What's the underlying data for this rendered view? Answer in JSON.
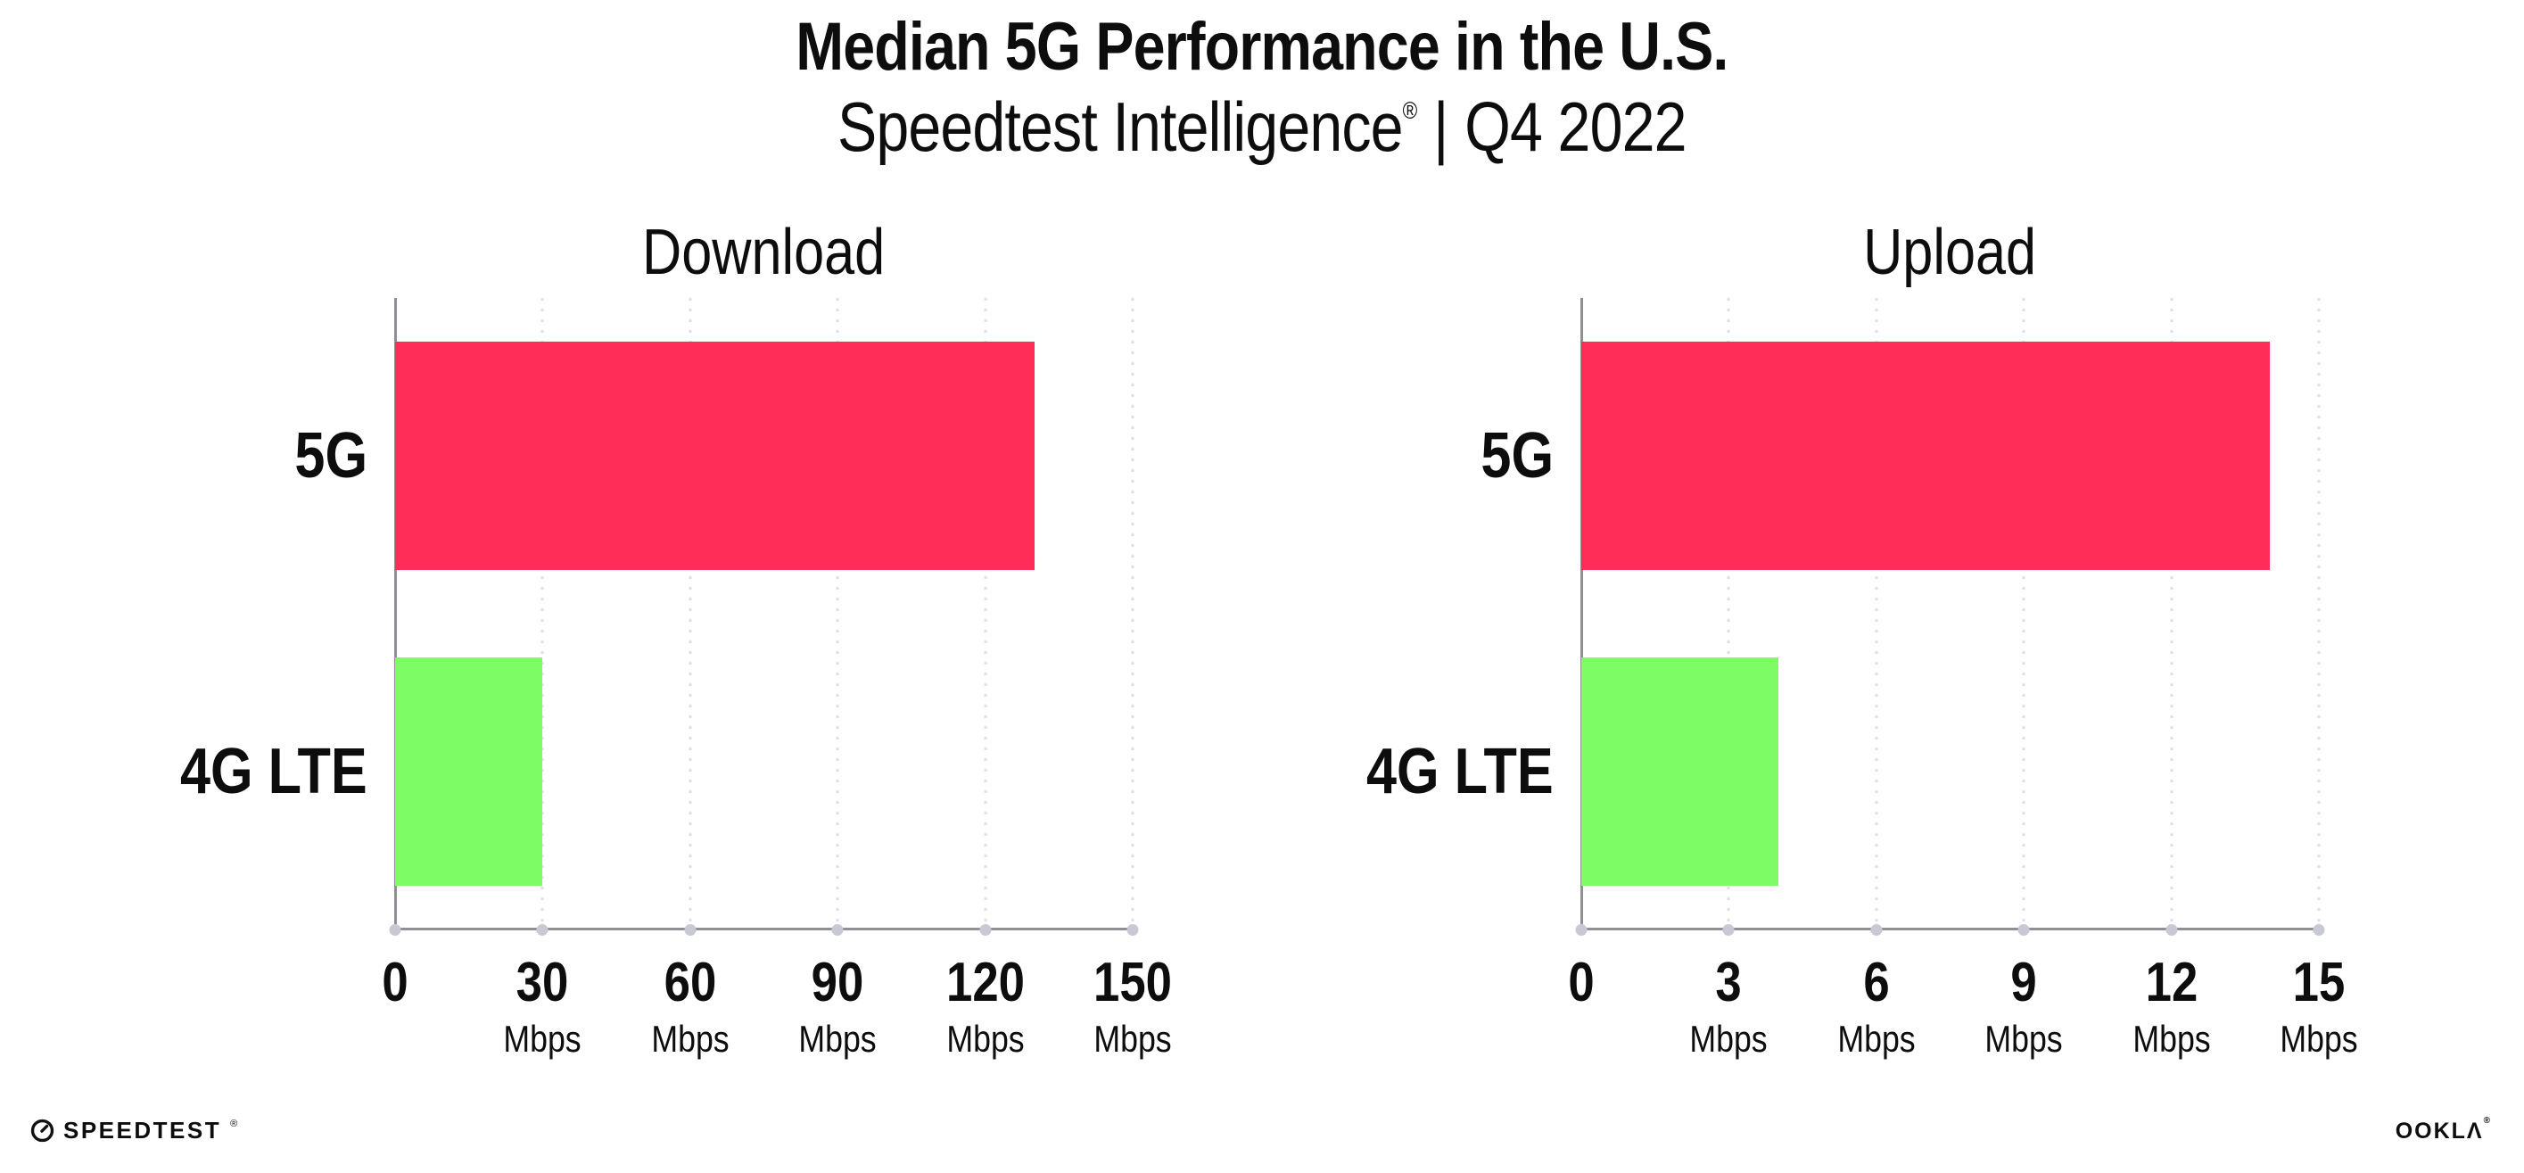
{
  "header": {
    "title": "Median 5G Performance in the U.S.",
    "subtitle": {
      "brand": "Speedtest Intelligence",
      "registered": "®",
      "separator": "|",
      "period": "Q4 2022"
    }
  },
  "footer": {
    "speedtest": {
      "icon": "speedometer-gauge-icon",
      "wordmark": "SPEEDTEST",
      "registered": "®"
    },
    "ookla": {
      "wordmark": "OOKLΛ",
      "registered": "®"
    }
  },
  "colors": {
    "bar_5g": "#FF2D57",
    "bar_4g_lte": "#7EFC66",
    "axis": "#8F8F96",
    "gridline": "#DEDEE9",
    "tick_dot": "#C9C9D6",
    "text": "#0D0D0D",
    "background": "#FFFFFF"
  },
  "chart_data": [
    {
      "type": "bar",
      "orientation": "horizontal",
      "title": "Download",
      "categories": [
        "5G",
        "4G LTE"
      ],
      "values": [
        130,
        30
      ],
      "value_unit": "Mbps",
      "xlim": [
        0,
        150
      ],
      "xticks": [
        0,
        30,
        60,
        90,
        120,
        150
      ],
      "xtick_unit": "Mbps",
      "grid": "dotted-vertical",
      "legend": "none",
      "bar_colors": [
        "#FF2D57",
        "#7EFC66"
      ]
    },
    {
      "type": "bar",
      "orientation": "horizontal",
      "title": "Upload",
      "categories": [
        "5G",
        "4G LTE"
      ],
      "values": [
        14,
        4
      ],
      "value_unit": "Mbps",
      "xlim": [
        0,
        15
      ],
      "xticks": [
        0,
        3,
        6,
        9,
        12,
        15
      ],
      "xtick_unit": "Mbps",
      "grid": "dotted-vertical",
      "legend": "none",
      "bar_colors": [
        "#FF2D57",
        "#7EFC66"
      ]
    }
  ]
}
